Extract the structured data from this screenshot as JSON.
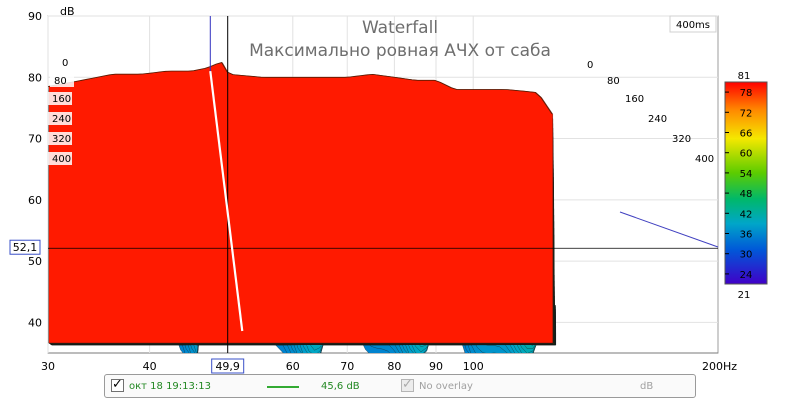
{
  "chart_data": {
    "type": "waterfall",
    "title": "Waterfall",
    "subtitle": "Максимально ровная АЧХ от саба",
    "time_window_label": "400ms",
    "y_unit_label": "dB",
    "x_unit_label": "200Hz",
    "x_scale": "log",
    "xlim": [
      30,
      200
    ],
    "ylim": [
      35,
      90
    ],
    "x_ticks": [
      {
        "value": 30,
        "label": "30"
      },
      {
        "value": 40,
        "label": "40"
      },
      {
        "value": 60,
        "label": "60"
      },
      {
        "value": 70,
        "label": "70"
      },
      {
        "value": 80,
        "label": "80"
      },
      {
        "value": 90,
        "label": "90"
      },
      {
        "value": 100,
        "label": "100"
      }
    ],
    "y_ticks": [
      {
        "value": 40,
        "label": "40"
      },
      {
        "value": 50,
        "label": "50"
      },
      {
        "value": 60,
        "label": "60"
      },
      {
        "value": 70,
        "label": "70"
      },
      {
        "value": 80,
        "label": "80"
      },
      {
        "value": 90,
        "label": "90"
      }
    ],
    "time_ticks_left": [
      "0",
      "80",
      "160",
      "240",
      "320",
      "400"
    ],
    "time_ticks_right": [
      "0",
      "80",
      "160",
      "240",
      "320",
      "400"
    ],
    "cursor": {
      "x": 49.9,
      "x_label": "49,9",
      "y": 52.1,
      "y_label": "52,1"
    },
    "colorbar": {
      "min_label": "21",
      "max_label": "81",
      "ticks": [
        {
          "value": 78,
          "label": "78"
        },
        {
          "value": 72,
          "label": "72"
        },
        {
          "value": 66,
          "label": "66"
        },
        {
          "value": 60,
          "label": "60"
        },
        {
          "value": 54,
          "label": "54"
        },
        {
          "value": 48,
          "label": "48"
        },
        {
          "value": 42,
          "label": "42"
        },
        {
          "value": 36,
          "label": "36"
        },
        {
          "value": 30,
          "label": "30"
        },
        {
          "value": 24,
          "label": "24"
        }
      ],
      "range": [
        21,
        81
      ]
    },
    "front_slice": {
      "freq": [
        30,
        33,
        36,
        39,
        42,
        45,
        47,
        49,
        50,
        55,
        60,
        65,
        70,
        75,
        80,
        85,
        90,
        95,
        100,
        110,
        120,
        125
      ],
      "db": [
        78.5,
        79.5,
        80.5,
        80.5,
        81,
        81,
        81.5,
        82.5,
        80.5,
        80,
        80,
        80,
        80,
        80.5,
        80,
        79.5,
        79.5,
        78,
        78,
        78,
        77.5,
        74
      ]
    },
    "time_slices": 60,
    "time_range_ms": [
      0,
      400
    ]
  },
  "legend": {
    "measurement_label": "окт 18 19:13:13",
    "value_label": "45,6 dB",
    "overlay_label": "No overlay",
    "overlay_unit_label": "dB",
    "series_color": "#33aa33"
  }
}
